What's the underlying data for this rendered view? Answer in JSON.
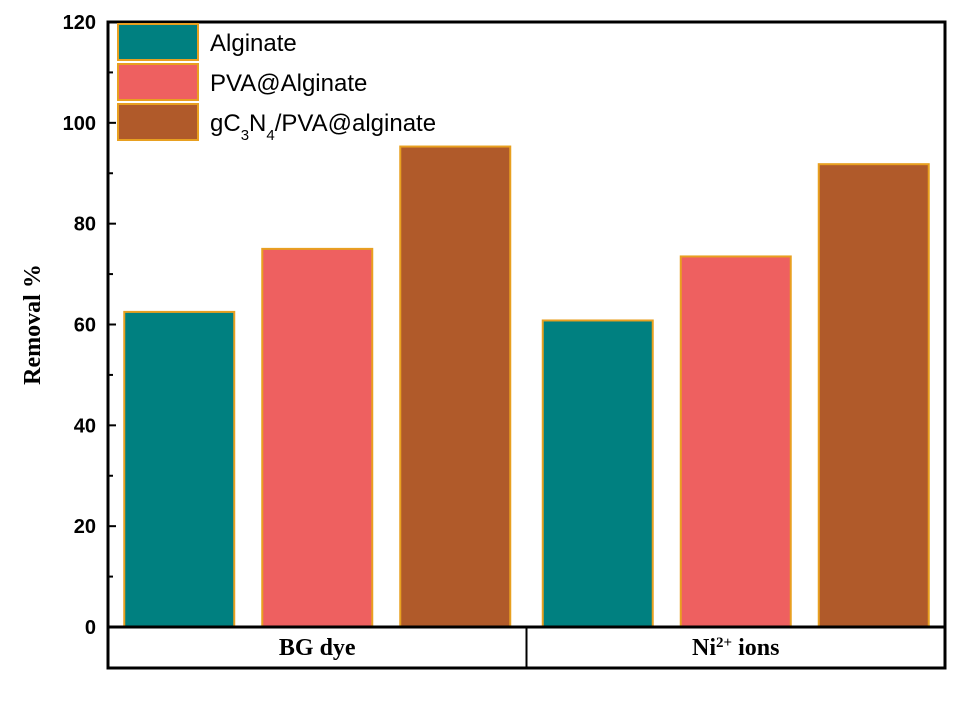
{
  "chart_data": {
    "type": "bar",
    "title": "",
    "xlabel": "",
    "ylabel": "Removal %",
    "ylim": [
      0,
      120
    ],
    "yticks": [
      0,
      20,
      40,
      60,
      80,
      100,
      120
    ],
    "categories": [
      "BG dye",
      "Ni²⁺ ions"
    ],
    "categories_rich": [
      [
        {
          "t": "BG dye"
        }
      ],
      [
        {
          "t": "Ni"
        },
        {
          "t": "2+",
          "sup": true
        },
        {
          "t": " ions"
        }
      ]
    ],
    "series": [
      {
        "name": "Alginate",
        "color": "#008080",
        "values": [
          62.5,
          60.8
        ],
        "name_rich": [
          {
            "t": "Alginate"
          }
        ]
      },
      {
        "name": "PVA@Alginate",
        "color": "#EE6060",
        "values": [
          75.0,
          73.5
        ],
        "name_rich": [
          {
            "t": "PVA@Alginate"
          }
        ]
      },
      {
        "name": "gC3N4/PVA@alginate",
        "color": "#B05A2A",
        "values": [
          95.3,
          91.8
        ],
        "name_rich": [
          {
            "t": "gC"
          },
          {
            "t": "3",
            "sub": true
          },
          {
            "t": "N"
          },
          {
            "t": "4",
            "sub": true
          },
          {
            "t": "/PVA@alginate"
          }
        ]
      }
    ],
    "bar_edge_color": "#E8A020",
    "grid": false,
    "legend_position": "top-left"
  }
}
